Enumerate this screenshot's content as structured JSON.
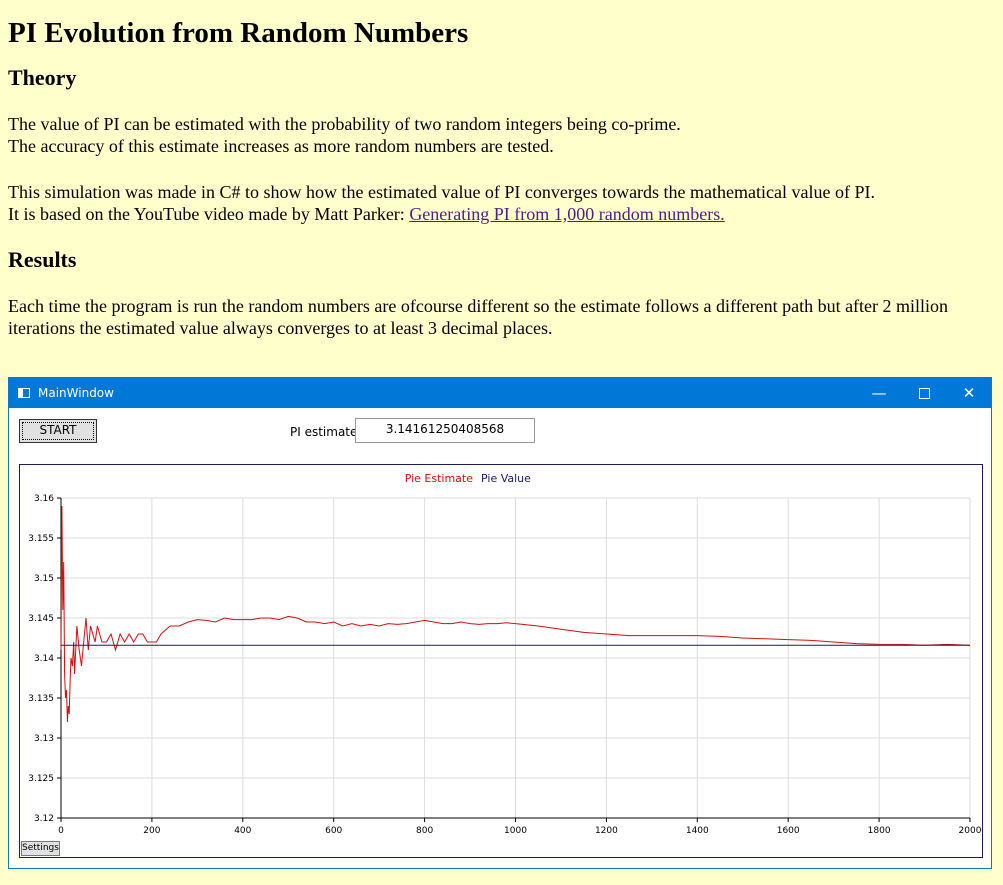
{
  "page": {
    "title": "PI Evolution from Random Numbers",
    "theory_heading": "Theory",
    "theory_line1": "The value of PI can be estimated with the probability of two random integers being co-prime.",
    "theory_line2": "The accuracy of this estimate increases as more random numbers are tested.",
    "sim_line1": "This simulation was made in C# to show how the estimated value of PI converges towards the mathematical value of PI.",
    "sim_line2_prefix": "It is based on the YouTube video made by Matt Parker: ",
    "sim_link_text": "Generating PI from 1,000 random numbers.",
    "results_heading": "Results",
    "results_text": "Each time the program is run the random numbers are ofcourse different so the estimate follows a different path but after 2 million iterations the estimated value always converges to at least 3 decimal places."
  },
  "window": {
    "title": "MainWindow",
    "minimize_glyph": "—",
    "close_glyph": "✕",
    "start_label": "START",
    "pi_label": "PI estimate:",
    "pi_value": "3.14161250408568",
    "settings_label": "Settings"
  },
  "colors": {
    "estimate": "#d01010",
    "value": "#1a1a60",
    "titlebar": "#0078d7"
  },
  "chart_data": {
    "type": "line",
    "legend": [
      "Pie Estimate",
      "Pie Value"
    ],
    "legend_placement": "top-center",
    "grid": true,
    "xlim": [
      0,
      2000
    ],
    "ylim": [
      3.12,
      3.16
    ],
    "x_ticks": [
      "0",
      "200",
      "400",
      "600",
      "800",
      "1000",
      "1200",
      "1400",
      "1600",
      "1800",
      "2000"
    ],
    "y_ticks": [
      "3.12",
      "3.125",
      "3.13",
      "3.135",
      "3.14",
      "3.145",
      "3.15",
      "3.155",
      "3.16"
    ],
    "series": [
      {
        "name": "Pie Estimate",
        "x": [
          0,
          2,
          4,
          6,
          8,
          10,
          12,
          14,
          16,
          18,
          20,
          22,
          25,
          28,
          30,
          35,
          40,
          45,
          50,
          55,
          60,
          65,
          70,
          75,
          80,
          90,
          100,
          110,
          120,
          130,
          140,
          150,
          160,
          170,
          180,
          190,
          200,
          210,
          220,
          230,
          240,
          260,
          280,
          300,
          320,
          340,
          360,
          380,
          400,
          420,
          440,
          460,
          480,
          500,
          520,
          540,
          560,
          580,
          600,
          620,
          640,
          660,
          680,
          700,
          720,
          740,
          760,
          780,
          800,
          820,
          840,
          860,
          880,
          900,
          920,
          940,
          960,
          980,
          1000,
          1050,
          1100,
          1150,
          1200,
          1250,
          1300,
          1350,
          1400,
          1450,
          1500,
          1550,
          1600,
          1650,
          1700,
          1750,
          1800,
          1850,
          1900,
          1950,
          2000
        ],
        "values": [
          3.141,
          3.159,
          3.146,
          3.152,
          3.138,
          3.135,
          3.136,
          3.132,
          3.134,
          3.133,
          3.137,
          3.14,
          3.139,
          3.142,
          3.138,
          3.144,
          3.141,
          3.139,
          3.142,
          3.145,
          3.141,
          3.144,
          3.143,
          3.142,
          3.144,
          3.142,
          3.142,
          3.143,
          3.141,
          3.143,
          3.142,
          3.143,
          3.142,
          3.143,
          3.143,
          3.142,
          3.142,
          3.142,
          3.143,
          3.1435,
          3.144,
          3.144,
          3.1445,
          3.1448,
          3.1447,
          3.1445,
          3.145,
          3.1448,
          3.1448,
          3.1448,
          3.145,
          3.145,
          3.1448,
          3.1452,
          3.145,
          3.1445,
          3.1445,
          3.1443,
          3.1445,
          3.144,
          3.1443,
          3.144,
          3.1442,
          3.144,
          3.1443,
          3.1442,
          3.1443,
          3.1445,
          3.1447,
          3.1445,
          3.1443,
          3.1443,
          3.1445,
          3.1443,
          3.1442,
          3.1443,
          3.1443,
          3.1444,
          3.1443,
          3.144,
          3.1436,
          3.1432,
          3.143,
          3.1428,
          3.1428,
          3.1428,
          3.1428,
          3.1427,
          3.1425,
          3.1424,
          3.1423,
          3.1422,
          3.142,
          3.1418,
          3.1417,
          3.1417,
          3.1416,
          3.1417,
          3.1416
        ]
      },
      {
        "name": "Pie Value",
        "x": [
          0,
          2000
        ],
        "values": [
          3.14159265,
          3.14159265
        ]
      }
    ]
  }
}
